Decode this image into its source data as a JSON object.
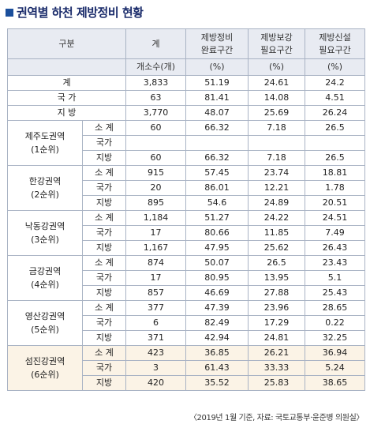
{
  "title": "권역별 하천 제방정비 현황",
  "header": {
    "category": "구분",
    "total": "계",
    "count_unit": "개소수(개)",
    "col1_line1": "제방정비",
    "col1_line2": "완료구간",
    "col2_line1": "제방보강",
    "col2_line2": "필요구간",
    "col3_line1": "제방신설",
    "col3_line2": "필요구간",
    "pct": "(%)"
  },
  "summary": [
    {
      "label": "계",
      "count": "3,833",
      "done": "51.19",
      "reinforce": "24.61",
      "new": "24.2"
    },
    {
      "label": "국 가",
      "count": "63",
      "done": "81.41",
      "reinforce": "14.08",
      "new": "4.51"
    },
    {
      "label": "지 방",
      "count": "3,770",
      "done": "48.07",
      "reinforce": "25.69",
      "new": "26.24"
    }
  ],
  "regions": [
    {
      "name": "제주도권역",
      "rank": "(1순위)",
      "rows": [
        {
          "label": "소 계",
          "count": "60",
          "done": "66.32",
          "reinforce": "7.18",
          "new": "26.5"
        },
        {
          "label": "국가",
          "count": "",
          "done": "",
          "reinforce": "",
          "new": ""
        },
        {
          "label": "지방",
          "count": "60",
          "done": "66.32",
          "reinforce": "7.18",
          "new": "26.5"
        }
      ]
    },
    {
      "name": "한강권역",
      "rank": "(2순위)",
      "rows": [
        {
          "label": "소 계",
          "count": "915",
          "done": "57.45",
          "reinforce": "23.74",
          "new": "18.81"
        },
        {
          "label": "국가",
          "count": "20",
          "done": "86.01",
          "reinforce": "12.21",
          "new": "1.78"
        },
        {
          "label": "지방",
          "count": "895",
          "done": "54.6",
          "reinforce": "24.89",
          "new": "20.51"
        }
      ]
    },
    {
      "name": "낙동강권역",
      "rank": "(3순위)",
      "rows": [
        {
          "label": "소 계",
          "count": "1,184",
          "done": "51.27",
          "reinforce": "24.22",
          "new": "24.51"
        },
        {
          "label": "국가",
          "count": "17",
          "done": "80.66",
          "reinforce": "11.85",
          "new": "7.49"
        },
        {
          "label": "지방",
          "count": "1,167",
          "done": "47.95",
          "reinforce": "25.62",
          "new": "26.43"
        }
      ]
    },
    {
      "name": "금강권역",
      "rank": "(4순위)",
      "rows": [
        {
          "label": "소 계",
          "count": "874",
          "done": "50.07",
          "reinforce": "26.5",
          "new": "23.43"
        },
        {
          "label": "국가",
          "count": "17",
          "done": "80.95",
          "reinforce": "13.95",
          "new": "5.1"
        },
        {
          "label": "지방",
          "count": "857",
          "done": "46.69",
          "reinforce": "27.88",
          "new": "25.43"
        }
      ]
    },
    {
      "name": "영산강권역",
      "rank": "(5순위)",
      "rows": [
        {
          "label": "소 계",
          "count": "377",
          "done": "47.39",
          "reinforce": "23.96",
          "new": "28.65"
        },
        {
          "label": "국가",
          "count": "6",
          "done": "82.49",
          "reinforce": "17.29",
          "new": "0.22"
        },
        {
          "label": "지방",
          "count": "371",
          "done": "42.94",
          "reinforce": "24.81",
          "new": "32.25"
        }
      ]
    },
    {
      "name": "섬진강권역",
      "rank": "(6순위)",
      "rows": [
        {
          "label": "소 계",
          "count": "423",
          "done": "36.85",
          "reinforce": "26.21",
          "new": "36.94"
        },
        {
          "label": "국가",
          "count": "3",
          "done": "61.43",
          "reinforce": "33.33",
          "new": "5.24"
        },
        {
          "label": "지방",
          "count": "420",
          "done": "35.52",
          "reinforce": "25.83",
          "new": "38.65"
        }
      ]
    }
  ],
  "source": "〈2019년 1월 기준, 자료: 국토교통부·윤준병 의원실〉"
}
